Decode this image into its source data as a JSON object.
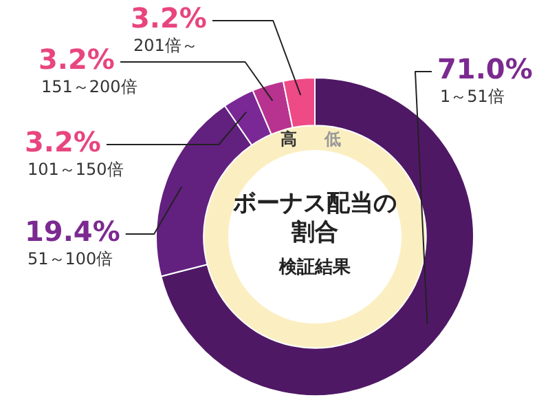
{
  "chart_data": {
    "type": "donut",
    "title": "ボーナス配当の割合",
    "subtitle": "検証結果",
    "categories": [
      "1～51倍",
      "51～100倍",
      "101～150倍",
      "151～200倍",
      "201倍～"
    ],
    "values": [
      71.0,
      19.4,
      3.2,
      3.2,
      3.2
    ],
    "colors": [
      "#4f1865",
      "#62207f",
      "#7a2895",
      "#b8338f",
      "#ee4a85"
    ],
    "value_labels": [
      "71.0%",
      "19.4%",
      "3.2%",
      "3.2%",
      "3.2%"
    ],
    "annotations": [
      "高",
      "低"
    ],
    "legend": false
  }
}
